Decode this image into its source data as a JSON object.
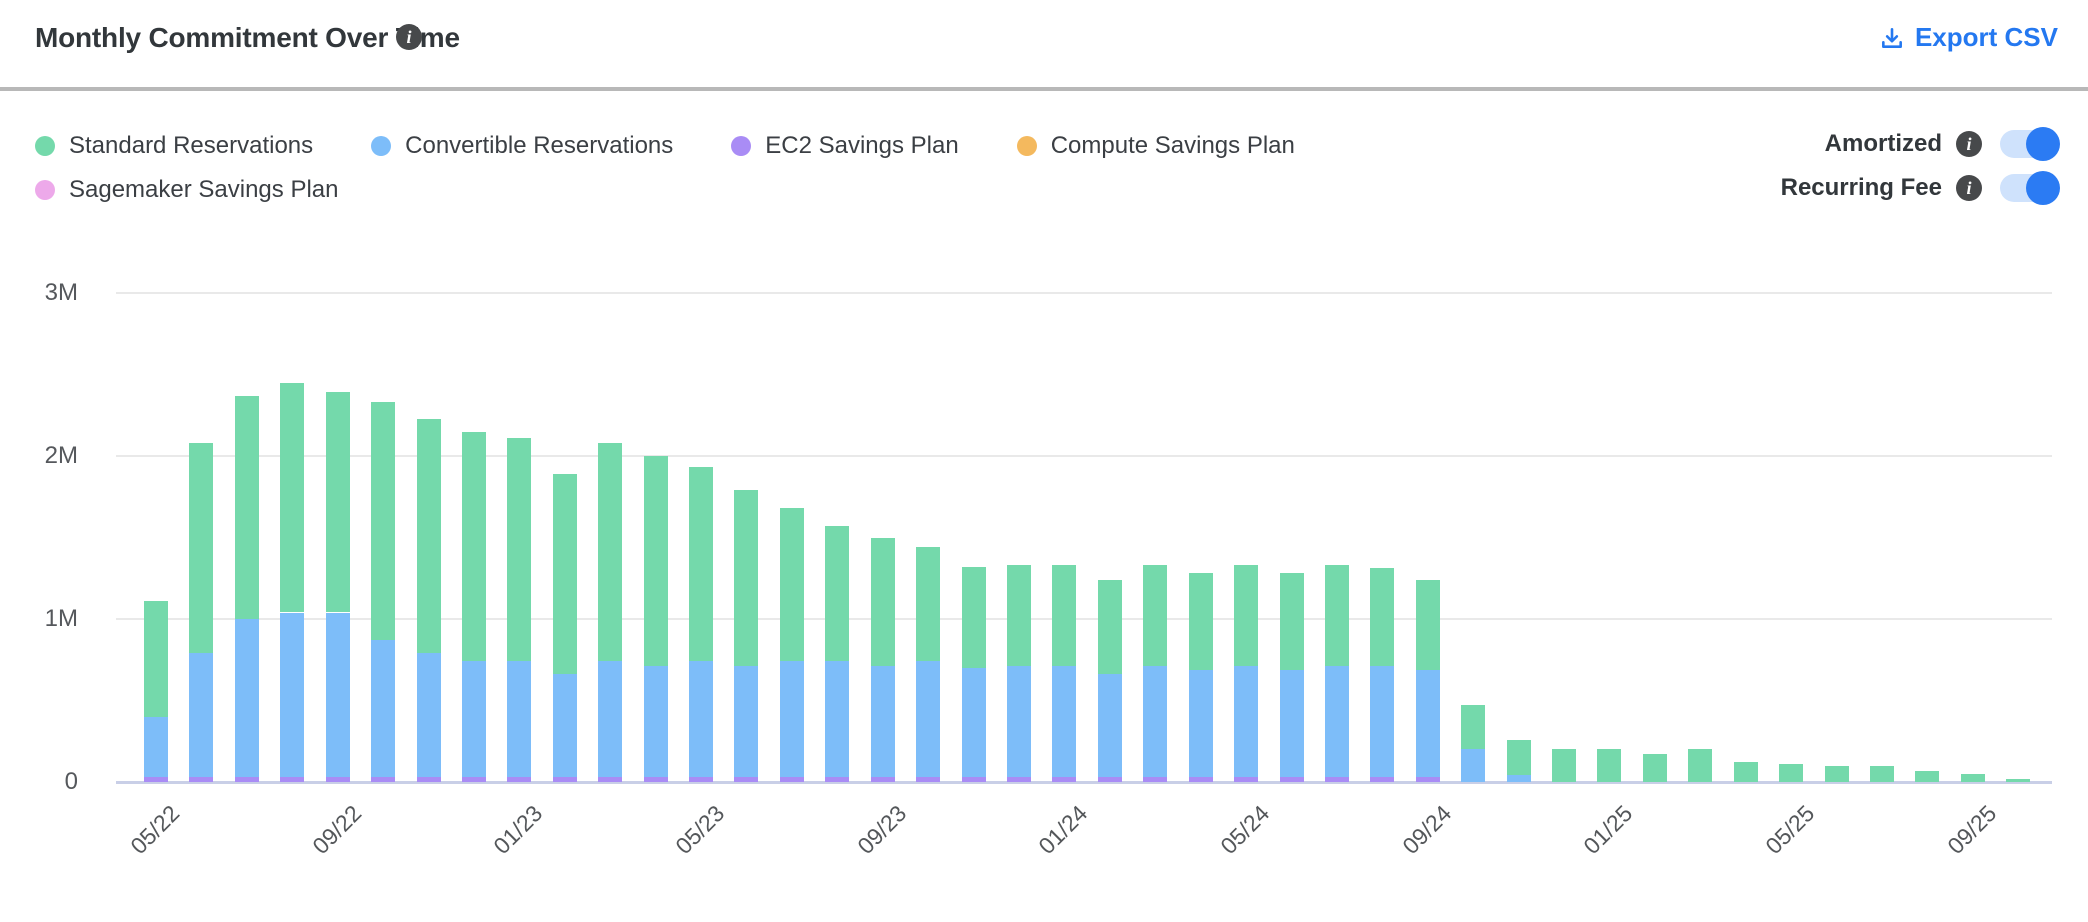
{
  "header": {
    "title": "Monthly Commitment Over Time",
    "info_icon": "info-icon",
    "export_label": "Export CSV"
  },
  "legend": [
    {
      "label": "Standard Reservations",
      "color": "#74d9ab"
    },
    {
      "label": "Convertible Reservations",
      "color": "#7dbdf9"
    },
    {
      "label": "EC2 Savings Plan",
      "color": "#a98cf5"
    },
    {
      "label": "Compute Savings Plan",
      "color": "#f4b95e"
    },
    {
      "label": "Sagemaker Savings Plan",
      "color": "#eda9ea"
    }
  ],
  "toggles": [
    {
      "label": "Amortized",
      "state": "on"
    },
    {
      "label": "Recurring Fee",
      "state": "on"
    }
  ],
  "colors": {
    "accent_blue": "#2478f0",
    "toggle_track": "#cfe2fc",
    "gridline": "#e9e9e9",
    "axis_line": "#c9cfe7"
  },
  "chart_data": {
    "type": "bar",
    "stacked": true,
    "title": "Monthly Commitment Over Time",
    "xlabel": "",
    "ylabel": "",
    "unit": "millions USD",
    "ylim": [
      0,
      3000000
    ],
    "grid": "horizontal",
    "legend_position": "top-left",
    "y_ticks": [
      {
        "label": "3M",
        "value": 3
      },
      {
        "label": "2M",
        "value": 2
      },
      {
        "label": "1M",
        "value": 1
      },
      {
        "label": "0",
        "value": 0
      }
    ],
    "x": [
      "05/22",
      "06/22",
      "07/22",
      "08/22",
      "09/22",
      "10/22",
      "11/22",
      "12/22",
      "01/23",
      "02/23",
      "03/23",
      "04/23",
      "05/23",
      "06/23",
      "07/23",
      "08/23",
      "09/23",
      "10/23",
      "11/23",
      "12/23",
      "01/24",
      "02/24",
      "03/24",
      "04/24",
      "05/24",
      "06/24",
      "07/24",
      "08/24",
      "09/24",
      "10/24",
      "11/24",
      "12/24",
      "01/25",
      "02/25",
      "03/25",
      "04/25",
      "05/25",
      "06/25",
      "07/25",
      "08/25",
      "09/25",
      "10/25"
    ],
    "x_tick_indices": [
      0,
      4,
      8,
      12,
      16,
      20,
      24,
      28,
      32,
      36,
      40
    ],
    "x_tick_labels": [
      "05/22",
      "09/22",
      "01/23",
      "05/23",
      "09/23",
      "01/24",
      "05/24",
      "09/24",
      "01/25",
      "05/25",
      "09/25"
    ],
    "series": [
      {
        "name": "EC2 Savings Plan",
        "color": "#a98cf5",
        "values": [
          0.03,
          0.03,
          0.03,
          0.03,
          0.03,
          0.03,
          0.03,
          0.03,
          0.03,
          0.03,
          0.03,
          0.03,
          0.03,
          0.03,
          0.03,
          0.03,
          0.03,
          0.03,
          0.03,
          0.03,
          0.03,
          0.03,
          0.03,
          0.03,
          0.03,
          0.03,
          0.03,
          0.03,
          0.03,
          0,
          0,
          0,
          0,
          0,
          0,
          0,
          0,
          0,
          0,
          0,
          0,
          0
        ]
      },
      {
        "name": "Convertible Reservations",
        "color": "#7dbdf9",
        "values": [
          0.37,
          0.76,
          0.97,
          1.01,
          1.01,
          0.84,
          0.76,
          0.71,
          0.71,
          0.63,
          0.71,
          0.68,
          0.71,
          0.68,
          0.71,
          0.71,
          0.68,
          0.71,
          0.67,
          0.68,
          0.68,
          0.63,
          0.68,
          0.66,
          0.68,
          0.66,
          0.68,
          0.68,
          0.66,
          0.2,
          0.04,
          0,
          0,
          0,
          0,
          0,
          0,
          0,
          0,
          0,
          0,
          0
        ]
      },
      {
        "name": "Standard Reservations",
        "color": "#74d9ab",
        "values": [
          0.71,
          1.29,
          1.37,
          1.41,
          1.35,
          1.46,
          1.44,
          1.41,
          1.37,
          1.23,
          1.34,
          1.29,
          1.19,
          1.08,
          0.94,
          0.83,
          0.79,
          0.7,
          0.62,
          0.62,
          0.62,
          0.58,
          0.62,
          0.59,
          0.62,
          0.59,
          0.62,
          0.6,
          0.55,
          0.27,
          0.22,
          0.2,
          0.2,
          0.17,
          0.2,
          0.12,
          0.11,
          0.1,
          0.1,
          0.07,
          0.05,
          0.02
        ]
      },
      {
        "name": "Compute Savings Plan",
        "color": "#f4b95e",
        "values": [
          0,
          0,
          0,
          0,
          0,
          0,
          0,
          0,
          0,
          0,
          0,
          0,
          0,
          0,
          0,
          0,
          0,
          0,
          0,
          0,
          0,
          0,
          0,
          0,
          0,
          0,
          0,
          0,
          0,
          0,
          0,
          0,
          0,
          0,
          0,
          0,
          0,
          0,
          0,
          0,
          0,
          0
        ]
      },
      {
        "name": "Sagemaker Savings Plan",
        "color": "#eda9ea",
        "values": [
          0,
          0,
          0,
          0,
          0,
          0,
          0,
          0,
          0,
          0,
          0,
          0,
          0,
          0,
          0,
          0,
          0,
          0,
          0,
          0,
          0,
          0,
          0,
          0,
          0,
          0,
          0,
          0,
          0,
          0,
          0,
          0,
          0,
          0,
          0,
          0,
          0,
          0,
          0,
          0,
          0,
          0
        ]
      }
    ]
  }
}
